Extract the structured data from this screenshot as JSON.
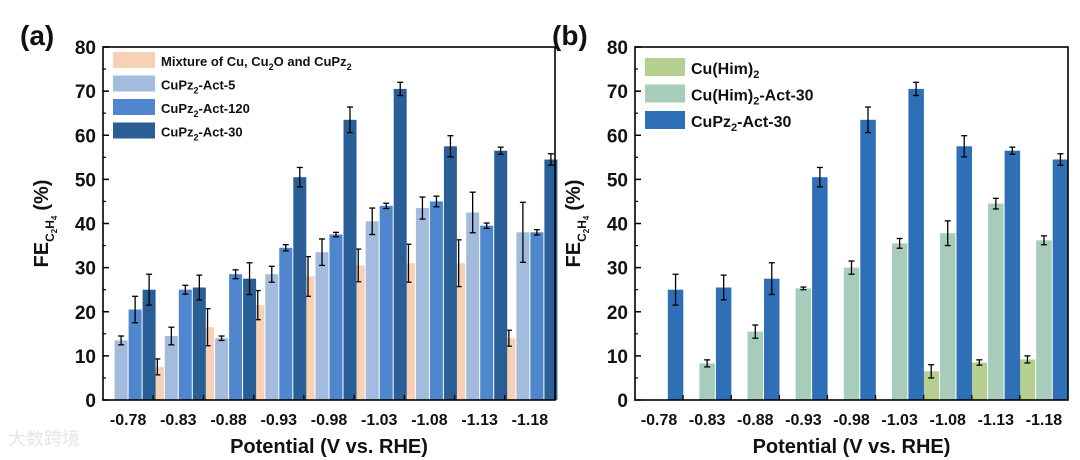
{
  "watermark": "大数跨境",
  "chart_data": [
    {
      "type": "bar",
      "panel_label": "(a)",
      "xlabel": "Potential (V vs. RHE)",
      "ylabel": {
        "main": "FE",
        "sub_parts": [
          "C",
          "2",
          "H",
          "4"
        ],
        "unit": "(%)"
      },
      "ylim": [
        0,
        80
      ],
      "yticks": [
        0,
        10,
        20,
        30,
        40,
        50,
        60,
        70,
        80
      ],
      "categories": [
        "-0.78",
        "-0.83",
        "-0.88",
        "-0.93",
        "-0.98",
        "-1.03",
        "-1.08",
        "-1.13",
        "-1.18"
      ],
      "series": [
        {
          "name": "Mixture of Cu, Cu2O and CuPz2",
          "legend_parts": [
            [
              "Mixture of Cu, Cu",
              false
            ],
            [
              "2",
              true
            ],
            [
              "O and CuPz",
              false
            ],
            [
              "2",
              true
            ]
          ],
          "color": "#f8d0b4",
          "values": [
            null,
            7.5,
            16.5,
            21.5,
            28,
            30.5,
            31,
            31,
            14
          ],
          "errors": [
            null,
            1.8,
            4.2,
            3.3,
            4.5,
            3.7,
            4.3,
            5.3,
            1.8
          ]
        },
        {
          "name": "CuPz2-Act-5",
          "legend_parts": [
            [
              "CuPz",
              false
            ],
            [
              "2",
              true
            ],
            [
              "-Act-5",
              false
            ]
          ],
          "color": "#a3bbdd",
          "values": [
            13.5,
            14.5,
            14,
            28.5,
            33.5,
            40.5,
            43.5,
            42.5,
            38
          ],
          "errors": [
            1,
            2,
            0.5,
            1.8,
            3,
            3,
            2.5,
            4.6,
            6.8
          ]
        },
        {
          "name": "CuPz2-Act-120",
          "legend_parts": [
            [
              "CuPz",
              false
            ],
            [
              "2",
              true
            ],
            [
              "-Act-120",
              false
            ]
          ],
          "color": "#4f86ce",
          "values": [
            20.5,
            25,
            28.5,
            34.5,
            37.5,
            44,
            45,
            39.5,
            38
          ],
          "errors": [
            3,
            1,
            1,
            0.7,
            0.5,
            0.6,
            1.2,
            0.6,
            0.6
          ]
        },
        {
          "name": "CuPz2-Act-30",
          "legend_parts": [
            [
              "CuPz",
              false
            ],
            [
              "2",
              true
            ],
            [
              "-Act-30",
              false
            ]
          ],
          "color": "#2a5e96",
          "values": [
            25,
            25.5,
            27.5,
            50.5,
            63.5,
            70.5,
            57.5,
            56.5,
            54.5
          ],
          "errors": [
            3.5,
            2.8,
            3.6,
            2.2,
            2.9,
            1.5,
            2.4,
            0.8,
            1.3
          ]
        }
      ]
    },
    {
      "type": "bar",
      "panel_label": "(b)",
      "xlabel": "Potential (V vs. RHE)",
      "ylabel": {
        "main": "FE",
        "sub_parts": [
          "C",
          "2",
          "H",
          "4"
        ],
        "unit": "(%)"
      },
      "ylim": [
        0,
        80
      ],
      "yticks": [
        0,
        10,
        20,
        30,
        40,
        50,
        60,
        70,
        80
      ],
      "categories": [
        "-0.78",
        "-0.83",
        "-0.88",
        "-0.93",
        "-0.98",
        "-1.03",
        "-1.08",
        "-1.13",
        "-1.18"
      ],
      "series": [
        {
          "name": "Cu(Him)2",
          "legend_parts": [
            [
              "Cu(Him)",
              false
            ],
            [
              "2",
              true
            ]
          ],
          "color": "#b5d08e",
          "values": [
            null,
            null,
            null,
            null,
            null,
            null,
            6.5,
            8.5,
            9.2
          ],
          "errors": [
            null,
            null,
            null,
            null,
            null,
            null,
            1.5,
            0.6,
            0.8
          ]
        },
        {
          "name": "Cu(Him)2-Act-30",
          "legend_parts": [
            [
              "Cu(Him)",
              false
            ],
            [
              "2",
              true
            ],
            [
              "-Act-30",
              false
            ]
          ],
          "color": "#a8ccba",
          "values": [
            null,
            8.3,
            15.5,
            25.3,
            30,
            35.5,
            37.8,
            44.5,
            36.2
          ],
          "errors": [
            null,
            0.8,
            1.5,
            0.3,
            1.5,
            1.1,
            2.8,
            1.2,
            1
          ]
        },
        {
          "name": "CuPz2-Act-30",
          "legend_parts": [
            [
              "CuPz",
              false
            ],
            [
              "2",
              true
            ],
            [
              "-Act-30",
              false
            ]
          ],
          "color": "#2f6fb5",
          "values": [
            25,
            25.5,
            27.5,
            50.5,
            63.5,
            70.5,
            57.5,
            56.5,
            54.5
          ],
          "errors": [
            3.5,
            2.8,
            3.6,
            2.2,
            2.9,
            1.5,
            2.4,
            0.8,
            1.3
          ]
        }
      ]
    }
  ]
}
